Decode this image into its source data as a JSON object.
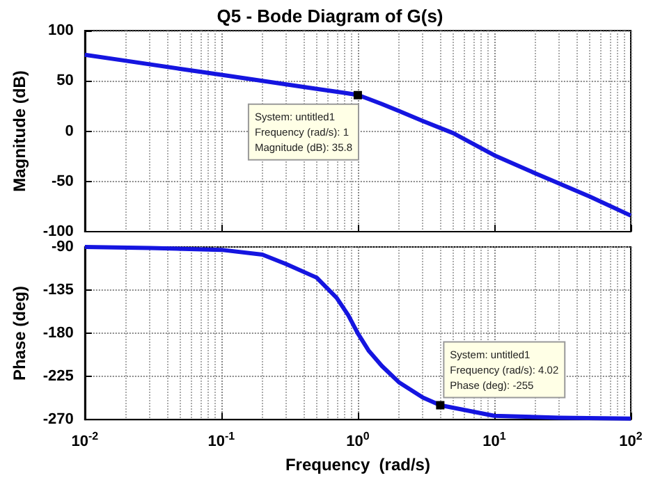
{
  "chart_data": [
    {
      "type": "line",
      "title": "Q5 - Bode Diagram of G(s)",
      "ylabel": "Magnitude (dB)",
      "x": [
        0.01,
        0.02,
        0.05,
        0.1,
        0.2,
        0.5,
        0.8,
        1,
        1.2,
        1.5,
        2,
        3,
        5,
        10,
        20,
        50,
        100
      ],
      "series": [
        {
          "color": "#1515e0",
          "values": [
            76,
            70,
            62,
            56,
            50,
            42,
            38,
            36,
            32,
            27,
            20,
            10,
            -2,
            -24,
            -42,
            -65,
            -84
          ]
        }
      ],
      "xlim": [
        0.01,
        100
      ],
      "xticks": [
        {
          "value": 0.01,
          "label": null
        },
        {
          "value": 0.1,
          "label": null
        },
        {
          "value": 1,
          "label": null
        },
        {
          "value": 10,
          "label": null
        },
        {
          "value": 100,
          "label": null
        }
      ],
      "ylim": [
        -100,
        100
      ],
      "yticks": [
        -100,
        -50,
        0,
        50,
        100
      ],
      "log": "x",
      "grid": true,
      "tick_labels": "y",
      "marker": "none",
      "annotations": [
        {
          "text": "System: untitled1\nFrequency (rad/s): 1\nMagnitude (dB): 35.8",
          "x": 1,
          "y": 35.8
        }
      ]
    },
    {
      "type": "line",
      "xlabel": "Frequency  (rad/s)",
      "ylabel": "Phase (deg)",
      "x": [
        0.01,
        0.03,
        0.1,
        0.2,
        0.3,
        0.5,
        0.7,
        0.85,
        1,
        1.2,
        1.5,
        2,
        3,
        4.02,
        10,
        30,
        100
      ],
      "series": [
        {
          "color": "#1515e0",
          "values": [
            -90,
            -91,
            -93,
            -98,
            -108,
            -122,
            -143,
            -161,
            -180,
            -198,
            -214,
            -231,
            -247,
            -255,
            -266,
            -268,
            -269
          ]
        }
      ],
      "xlim": [
        0.01,
        100
      ],
      "xticks": [
        {
          "value": 0.01,
          "label": "10$^{-2}$"
        },
        {
          "value": 0.1,
          "label": "10$^{-1}$"
        },
        {
          "value": 1,
          "label": "10$^{0}$"
        },
        {
          "value": 10,
          "label": "10$^{1}$"
        },
        {
          "value": 100,
          "label": "10$^{2}$"
        }
      ],
      "ylim": [
        -270,
        -90
      ],
      "yticks": [
        -270,
        -225,
        -180,
        -135,
        -90
      ],
      "log": "x",
      "grid": true,
      "marker": "none",
      "annotations": [
        {
          "text": "System: untitled1\nFrequency (rad/s): 4.02\nPhase (deg): -255",
          "x": 4.02,
          "y": -255
        }
      ]
    }
  ]
}
